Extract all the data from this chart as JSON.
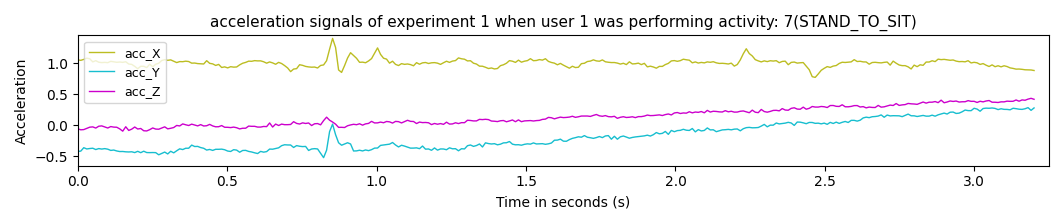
{
  "title": "acceleration signals of experiment 1 when user 1 was performing activity: 7(STAND_TO_SIT)",
  "xlabel": "Time in seconds (s)",
  "ylabel": "Acceleration",
  "xlim": [
    0.0,
    3.25
  ],
  "ylim": [
    -0.65,
    1.45
  ],
  "yticks": [
    -0.5,
    0.0,
    0.5,
    1.0
  ],
  "xticks": [
    0.0,
    0.5,
    1.0,
    1.5,
    2.0,
    2.5,
    3.0
  ],
  "colors": {
    "acc_X": "#bcbd22",
    "acc_Y": "#17becf",
    "acc_Z": "#cc00cc"
  },
  "legend_labels": [
    "acc_X",
    "acc_Y",
    "acc_Z"
  ],
  "bg_color": "#ffffff",
  "linewidth": 1.0
}
